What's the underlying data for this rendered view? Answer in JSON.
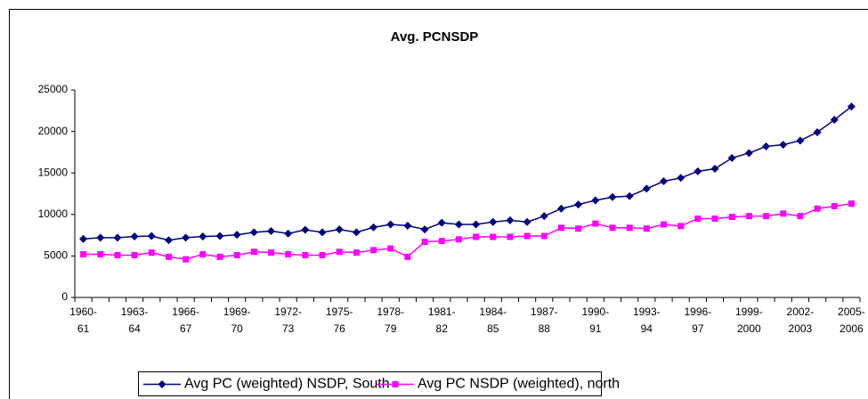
{
  "chart_data": {
    "type": "line",
    "title": "Avg. PCNSDP",
    "categories": [
      "1960-61",
      null,
      null,
      "1963-64",
      null,
      null,
      "1966-67",
      null,
      null,
      "1969-70",
      null,
      null,
      "1972-73",
      null,
      null,
      "1975-76",
      null,
      null,
      "1978-79",
      null,
      null,
      "1981-82",
      null,
      null,
      "1984-85",
      null,
      null,
      "1987-88",
      null,
      null,
      "1990-91",
      null,
      null,
      "1993-94",
      null,
      null,
      "1996-97",
      null,
      null,
      "1999-2000",
      null,
      null,
      "2002-2003",
      null,
      null,
      "2005-2006"
    ],
    "series": [
      {
        "name": "Avg PC (weighted) NSDP, South",
        "color": "#000080",
        "marker": "diamond",
        "values": [
          7050,
          7200,
          7200,
          7350,
          7400,
          6900,
          7200,
          7350,
          7400,
          7550,
          7850,
          8000,
          7700,
          8150,
          7850,
          8200,
          7850,
          8450,
          8800,
          8650,
          8200,
          9000,
          8800,
          8800,
          9100,
          9300,
          9100,
          9800,
          10700,
          11200,
          11700,
          12100,
          12200,
          13100,
          14000,
          14400,
          15200,
          15500,
          16800,
          17400,
          18200,
          18400,
          18900,
          19900,
          21400,
          23000
        ]
      },
      {
        "name": "Avg PC NSDP (weighted), north",
        "color": "#ff00ff",
        "marker": "square",
        "values": [
          5200,
          5200,
          5100,
          5100,
          5400,
          4900,
          4600,
          5200,
          4900,
          5100,
          5500,
          5400,
          5200,
          5100,
          5100,
          5500,
          5400,
          5700,
          5900,
          4900,
          6700,
          6800,
          7000,
          7300,
          7300,
          7300,
          7400,
          7400,
          8400,
          8300,
          8900,
          8400,
          8400,
          8300,
          8800,
          8600,
          9500,
          9500,
          9700,
          9800,
          9800,
          10100,
          9800,
          10700,
          11000,
          11300
        ]
      }
    ],
    "ylim": [
      0,
      25000
    ],
    "yticks": [
      0,
      5000,
      10000,
      15000,
      20000,
      25000
    ],
    "grid": false,
    "legend": "bottom"
  }
}
